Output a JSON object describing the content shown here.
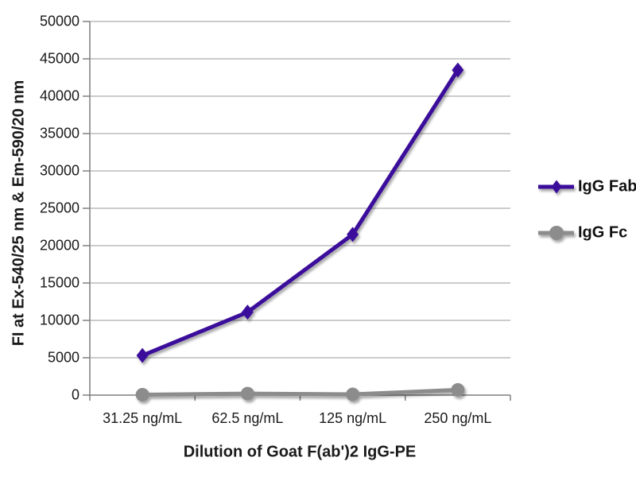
{
  "chart_data": {
    "type": "line",
    "title": "",
    "xlabel": "Dilution of Goat F(ab')2 IgG-PE",
    "ylabel": "FI at Ex-540/25 nm & Em-590/20 nm",
    "categories": [
      "31.25 ng/mL",
      "62.5 ng/mL",
      "125 ng/mL",
      "250 ng/mL"
    ],
    "series": [
      {
        "name": "IgG Fab",
        "values": [
          5300,
          11100,
          21500,
          43500
        ],
        "color": "#3B0D9B",
        "marker": "diamond"
      },
      {
        "name": "IgG Fc",
        "values": [
          50,
          200,
          100,
          700
        ],
        "color": "#8C8C8C",
        "marker": "circle"
      }
    ],
    "ylim": [
      0,
      50000
    ],
    "ytick_step": 5000,
    "grid": true,
    "legend_position": "right",
    "colors": {
      "grid": "#999999",
      "axis": "#7F7F7F",
      "text": "#1A1A1A"
    }
  }
}
